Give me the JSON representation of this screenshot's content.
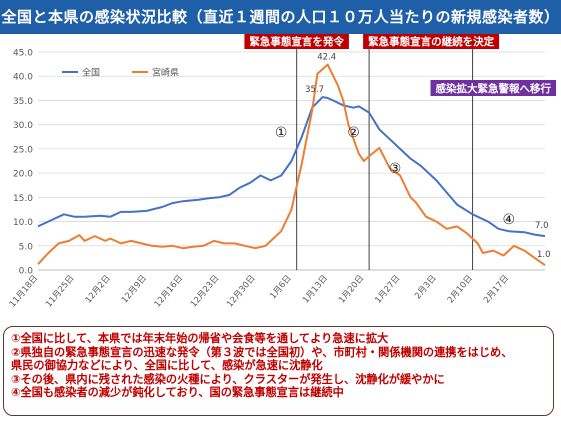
{
  "title": "全国と本県の感染状況比較（直近１週間の人口１０万人当たりの新規感染者数）",
  "chart_data": {
    "type": "line",
    "ylim": [
      0,
      45
    ],
    "yticks": [
      "0.0",
      "5.0",
      "10.0",
      "15.0",
      "20.0",
      "25.0",
      "30.0",
      "35.0",
      "40.0",
      "45.0"
    ],
    "ytick_values": [
      0,
      5,
      10,
      15,
      20,
      25,
      30,
      35,
      40,
      45
    ],
    "xlim": [
      0,
      98
    ],
    "xtick_labels": [
      "11月18日",
      "11月25日",
      "12月2日",
      "12月9日",
      "12月16日",
      "12月23日",
      "12月30日",
      "1月6日",
      "1月13日",
      "1月20日",
      "1月27日",
      "2月3日",
      "2月10日",
      "2月17日"
    ],
    "xtick_days": [
      0,
      7,
      14,
      21,
      28,
      35,
      42,
      49,
      56,
      63,
      70,
      77,
      84,
      91
    ],
    "grid": true,
    "legend_position": "top-left",
    "series": [
      {
        "name": "全国",
        "color": "#4472c4",
        "x": [
          0,
          3,
          5,
          7,
          9,
          12,
          14,
          16,
          18,
          21,
          24,
          26,
          28,
          31,
          33,
          35,
          37,
          39,
          41,
          43,
          45,
          47,
          49,
          51,
          53,
          55,
          56,
          57,
          59,
          61,
          62,
          64,
          66,
          68,
          70,
          72,
          74,
          77,
          79,
          81,
          84,
          87,
          89,
          91,
          94,
          96,
          98
        ],
        "y": [
          9.0,
          10.5,
          11.5,
          11.0,
          11.0,
          11.2,
          11.0,
          12.0,
          12.0,
          12.2,
          13.0,
          13.8,
          14.2,
          14.5,
          14.8,
          15.0,
          15.5,
          17.0,
          18.0,
          19.5,
          18.5,
          19.5,
          22.5,
          27.5,
          33.5,
          35.7,
          35.5,
          35.0,
          34.0,
          33.5,
          33.8,
          32.5,
          29.0,
          27.0,
          25.0,
          23.0,
          21.5,
          18.5,
          16.0,
          13.5,
          11.5,
          10.0,
          8.5,
          8.0,
          7.8,
          7.3,
          7.0
        ]
      },
      {
        "name": "宮崎県",
        "color": "#ed7d31",
        "x": [
          0,
          2,
          4,
          6,
          8,
          9,
          11,
          13,
          14,
          16,
          18,
          20,
          22,
          24,
          26,
          28,
          30,
          32,
          34,
          36,
          38,
          40,
          42,
          44,
          45,
          47,
          49,
          51,
          53,
          54,
          56,
          58,
          59,
          60,
          62,
          63,
          64,
          66,
          68,
          70,
          72,
          73,
          75,
          77,
          79,
          81,
          83,
          85,
          86,
          88,
          90,
          92,
          94,
          96,
          98
        ],
        "y": [
          1.2,
          3.5,
          5.5,
          6.0,
          7.2,
          6.0,
          7.0,
          6.0,
          6.5,
          5.5,
          6.0,
          5.5,
          5.0,
          4.8,
          5.0,
          4.5,
          4.8,
          5.0,
          6.0,
          5.5,
          5.5,
          5.0,
          4.5,
          5.0,
          6.0,
          8.0,
          12.5,
          22.0,
          33.0,
          40.5,
          42.4,
          38.0,
          35.0,
          30.0,
          24.0,
          22.5,
          23.5,
          25.2,
          21.0,
          19.5,
          15.0,
          14.0,
          11.0,
          10.0,
          8.5,
          9.0,
          7.5,
          5.5,
          3.5,
          4.0,
          3.0,
          5.0,
          4.0,
          2.5,
          1.0
        ]
      }
    ],
    "end_labels": {
      "national": "7.0",
      "miyazaki": "1.0"
    },
    "peak_labels": {
      "miyazaki": "42.4",
      "national": "35.7"
    },
    "events": [
      {
        "label": "緊急事態宣言を発令",
        "day": 50
      },
      {
        "label": "緊急事態宣言の継続を決定",
        "day": 64
      },
      {
        "label": "感染拡大緊急警報へ移行",
        "day": 84
      }
    ],
    "markers": [
      {
        "label": "①",
        "day": 47,
        "value": 27.5
      },
      {
        "label": "②",
        "day": 61,
        "value": 27.5
      },
      {
        "label": "③",
        "day": 69,
        "value": 20.0
      },
      {
        "label": "④",
        "day": 91,
        "value": 9.5
      }
    ]
  },
  "notes": [
    "①全国に比して、本県では年末年始の帰省や会食等を通してより急速に拡大",
    "②県独自の緊急事態宣言の迅速な発令（第３波では全国初）や、市町村・関係機関の連携をはじめ、",
    "県民の御協力などにより、全国に比して、感染が急速に沈静化",
    "③その後、県内に残された感染の火種により、クラスターが発生し、沈静化が緩やかに",
    "④全国も感染者の減少が鈍化しており、国の緊急事態宣言は継続中"
  ]
}
